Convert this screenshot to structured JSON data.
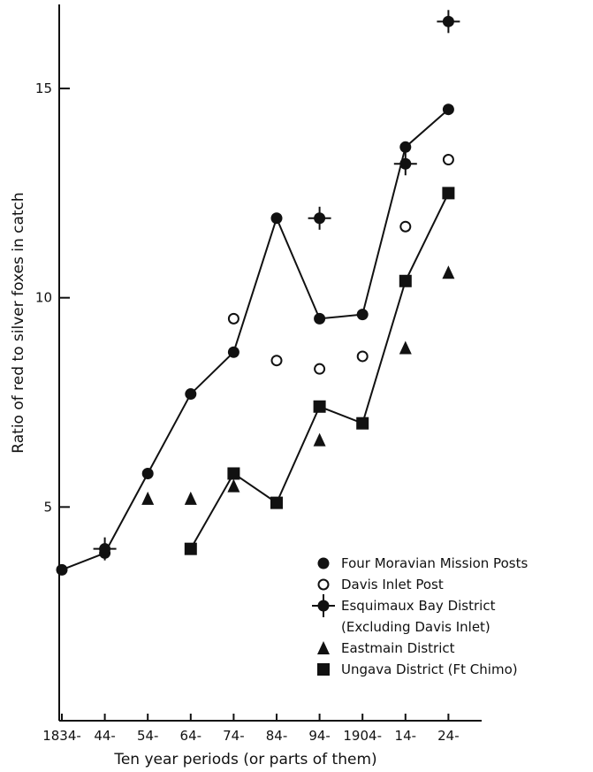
{
  "chart_data": {
    "type": "scatter",
    "xlabel": "Ten year periods (or parts of them)",
    "ylabel": "Ratio of red to silver foxes in catch",
    "categories": [
      "1834-",
      "44-",
      "54-",
      "64-",
      "74-",
      "84-",
      "94-",
      "1904-",
      "14-",
      "24-"
    ],
    "y_ticks": [
      "5",
      "10",
      "15"
    ],
    "ylim": [
      0,
      17
    ],
    "grid": false,
    "legend_position": "bottom-right",
    "series": [
      {
        "name": "Four Moravian Mission Posts",
        "marker": "filled-circle",
        "connected": true,
        "values": [
          3.5,
          3.9,
          5.8,
          7.7,
          8.7,
          11.9,
          9.5,
          9.6,
          13.6,
          14.5
        ]
      },
      {
        "name": "Davis Inlet Post",
        "marker": "open-circle",
        "connected": false,
        "values": [
          null,
          null,
          null,
          null,
          9.5,
          8.5,
          8.3,
          8.6,
          11.7,
          13.3
        ]
      },
      {
        "name": "Esquimaux Bay District",
        "name_line2": "(Excluding Davis Inlet)",
        "marker": "cross-circle",
        "connected": false,
        "values": [
          null,
          4.0,
          null,
          null,
          null,
          null,
          11.9,
          null,
          13.2,
          16.6
        ]
      },
      {
        "name": "Eastmain District",
        "marker": "filled-triangle",
        "connected": false,
        "values": [
          null,
          null,
          5.2,
          5.2,
          5.5,
          null,
          6.6,
          null,
          8.8,
          10.6
        ]
      },
      {
        "name": "Ungava District (Ft Chimo)",
        "marker": "filled-square",
        "connected": true,
        "values": [
          null,
          null,
          null,
          4.0,
          5.8,
          5.1,
          7.4,
          7.0,
          10.4,
          12.5
        ]
      }
    ]
  }
}
